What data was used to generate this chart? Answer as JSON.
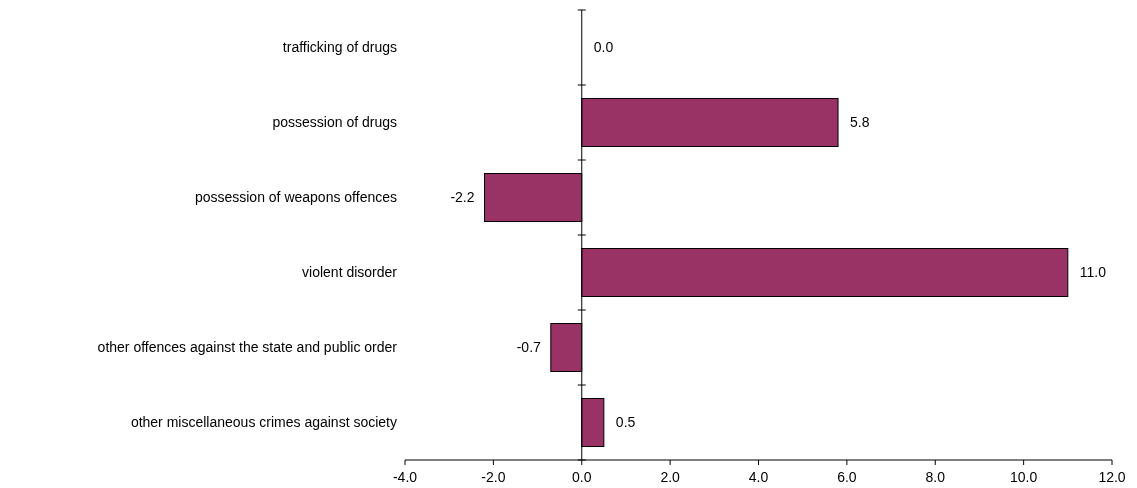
{
  "chart_data": {
    "type": "bar",
    "orientation": "horizontal",
    "categories": [
      "trafficking of drugs",
      "possession of drugs",
      "possession of weapons offences",
      "violent disorder",
      "other offences against the state and public order",
      "other miscellaneous crimes against society"
    ],
    "values": [
      0.0,
      5.8,
      -2.2,
      11.0,
      -0.7,
      0.5
    ],
    "value_labels": [
      "0.0",
      "5.8",
      "-2.2",
      "11.0",
      "-0.7",
      "0.5"
    ],
    "color": "#993366",
    "xlim": [
      -4,
      12
    ],
    "xticks": [
      {
        "value": -4,
        "label": "-4.0"
      },
      {
        "value": -2,
        "label": "-2.0"
      },
      {
        "value": 0,
        "label": "0.0"
      },
      {
        "value": 2,
        "label": "2.0"
      },
      {
        "value": 4,
        "label": "4.0"
      },
      {
        "value": 6,
        "label": "6.0"
      },
      {
        "value": 8,
        "label": "8.0"
      },
      {
        "value": 10,
        "label": "10.0"
      },
      {
        "value": 12,
        "label": "12.0"
      }
    ]
  }
}
